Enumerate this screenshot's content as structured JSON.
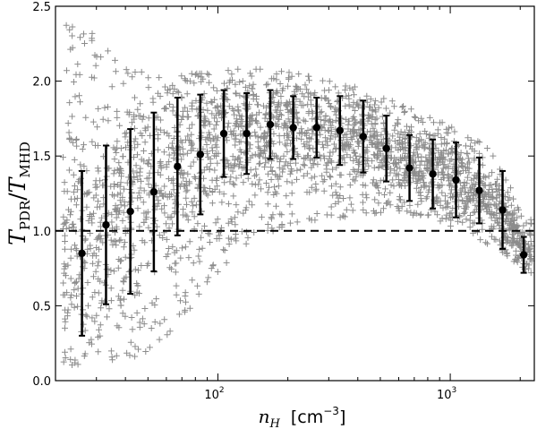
{
  "chart_data": {
    "type": "scatter",
    "xscale": "log",
    "xlim": [
      20,
      2300
    ],
    "ylim": [
      0.0,
      2.5
    ],
    "grid": false,
    "xlabel": {
      "var": "n",
      "sub": "H",
      "unit": "[cm",
      "exp": "−3",
      "close": "]"
    },
    "ylabel": {
      "a": "T",
      "a_sub": "PDR",
      "slash": "/",
      "b": "T",
      "b_sub": "MHD"
    },
    "reference_line": {
      "y": 1.0,
      "style": "dashed",
      "color": "#000000"
    },
    "x_ticks": [
      {
        "value": 100,
        "base": "10",
        "exp": "2"
      },
      {
        "value": 1000,
        "base": "10",
        "exp": "3"
      }
    ],
    "y_ticks": [
      "0.0",
      "0.5",
      "1.0",
      "1.5",
      "2.0",
      "2.5"
    ],
    "colors": {
      "scatter": "#8c8c8c",
      "errorbar": "#000000",
      "mean": "#000000"
    },
    "scatter_summary": {
      "marker": "+",
      "description": "grey plus markers; dense cloud spanning 0.1–2.1 at low density, concentrating at 1.2–2.1 around n_H ~ 100–300, narrowing toward 0.7–1.3 at high density",
      "envelope": [
        {
          "x": 22,
          "ylo": 0.1,
          "yhi": 2.45
        },
        {
          "x": 30,
          "ylo": 0.12,
          "yhi": 2.3
        },
        {
          "x": 40,
          "ylo": 0.12,
          "yhi": 2.1
        },
        {
          "x": 55,
          "ylo": 0.2,
          "yhi": 2.05
        },
        {
          "x": 70,
          "ylo": 0.4,
          "yhi": 2.05
        },
        {
          "x": 90,
          "ylo": 0.65,
          "yhi": 2.05
        },
        {
          "x": 120,
          "ylo": 0.85,
          "yhi": 2.08
        },
        {
          "x": 160,
          "ylo": 0.98,
          "yhi": 2.08
        },
        {
          "x": 220,
          "ylo": 1.05,
          "yhi": 2.05
        },
        {
          "x": 300,
          "ylo": 1.08,
          "yhi": 2.0
        },
        {
          "x": 420,
          "ylo": 1.1,
          "yhi": 1.95
        },
        {
          "x": 600,
          "ylo": 1.1,
          "yhi": 1.85
        },
        {
          "x": 850,
          "ylo": 1.08,
          "yhi": 1.75
        },
        {
          "x": 1100,
          "ylo": 1.0,
          "yhi": 1.7
        },
        {
          "x": 1500,
          "ylo": 0.9,
          "yhi": 1.55
        },
        {
          "x": 2100,
          "ylo": 0.72,
          "yhi": 1.1
        }
      ]
    },
    "series": [
      {
        "marker": "o",
        "points": [
          {
            "x": 26,
            "y": 0.85,
            "err": 0.55
          },
          {
            "x": 33,
            "y": 1.04,
            "err": 0.53
          },
          {
            "x": 42,
            "y": 1.13,
            "err": 0.55
          },
          {
            "x": 53,
            "y": 1.26,
            "err": 0.53
          },
          {
            "x": 67,
            "y": 1.43,
            "err": 0.46
          },
          {
            "x": 84,
            "y": 1.51,
            "err": 0.4
          },
          {
            "x": 106,
            "y": 1.65,
            "err": 0.29
          },
          {
            "x": 133,
            "y": 1.65,
            "err": 0.27
          },
          {
            "x": 168,
            "y": 1.71,
            "err": 0.23
          },
          {
            "x": 211,
            "y": 1.69,
            "err": 0.21
          },
          {
            "x": 266,
            "y": 1.69,
            "err": 0.2
          },
          {
            "x": 335,
            "y": 1.67,
            "err": 0.23
          },
          {
            "x": 422,
            "y": 1.63,
            "err": 0.24
          },
          {
            "x": 531,
            "y": 1.55,
            "err": 0.22
          },
          {
            "x": 668,
            "y": 1.42,
            "err": 0.22
          },
          {
            "x": 841,
            "y": 1.38,
            "err": 0.23
          },
          {
            "x": 1059,
            "y": 1.34,
            "err": 0.25
          },
          {
            "x": 1333,
            "y": 1.27,
            "err": 0.22
          },
          {
            "x": 1679,
            "y": 1.14,
            "err": 0.26
          },
          {
            "x": 2070,
            "y": 0.84,
            "err": 0.12
          }
        ]
      }
    ]
  }
}
